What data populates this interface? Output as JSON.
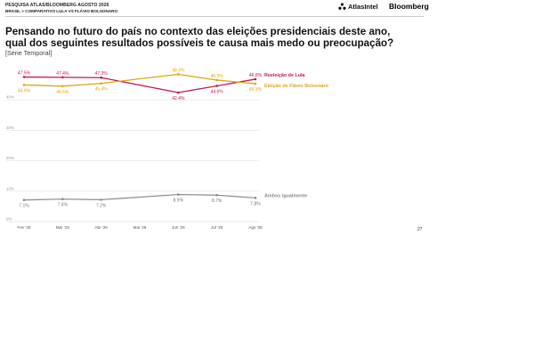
{
  "header": {
    "survey": "PESQUISA ATLAS/BLOOMBERG AGOSTO 2026",
    "breadcrumb": "BRASIL  >  COMPARATIVO LULA VS FLÁVIO BOLSONARO",
    "brand_atlas": "AtlasIntel",
    "brand_bloomberg": "Bloomberg"
  },
  "title": "Pensando no futuro do país no contexto das eleições presidenciais deste ano, qual dos seguintes resultados possíveis te causa mais medo ou preocupação?",
  "subtitle": "[Série Temporal]",
  "page_number": "27",
  "chart_data": {
    "type": "line",
    "categories": [
      "Fev '26",
      "Mar '26",
      "Abr '26",
      "Mai '26",
      "Jun '26",
      "Jul '26",
      "Ago '26"
    ],
    "ylim": [
      0,
      50
    ],
    "y_ticks": [
      "0%",
      "10%",
      "20%",
      "30%",
      "40%"
    ],
    "grid": true,
    "series": [
      {
        "name": "Reeleição de Lula",
        "color": "#c8174b",
        "values": [
          47.5,
          47.4,
          47.3,
          null,
          42.4,
          44.6,
          46.8
        ],
        "labels": [
          "47.5%",
          "47.4%",
          "47.3%",
          "",
          "42.4%",
          "44.6%",
          "46.8%"
        ]
      },
      {
        "name": "Eleição de Flávio Bolsonaro",
        "color": "#e0a816",
        "values": [
          44.9,
          44.5,
          45.4,
          null,
          48.4,
          46.5,
          45.3
        ],
        "labels": [
          "44.9%",
          "44.5%",
          "45.4%",
          "",
          "48.4%",
          "46.5%",
          "45.3%"
        ]
      },
      {
        "name": "Ambos igualmente",
        "color": "#8a8a8a",
        "values": [
          7.1,
          7.4,
          7.2,
          null,
          8.9,
          8.7,
          7.8
        ],
        "labels": [
          "7.1%",
          "7.4%",
          "7.2%",
          "",
          "8.9%",
          "8.7%",
          "7.8%"
        ]
      }
    ]
  }
}
